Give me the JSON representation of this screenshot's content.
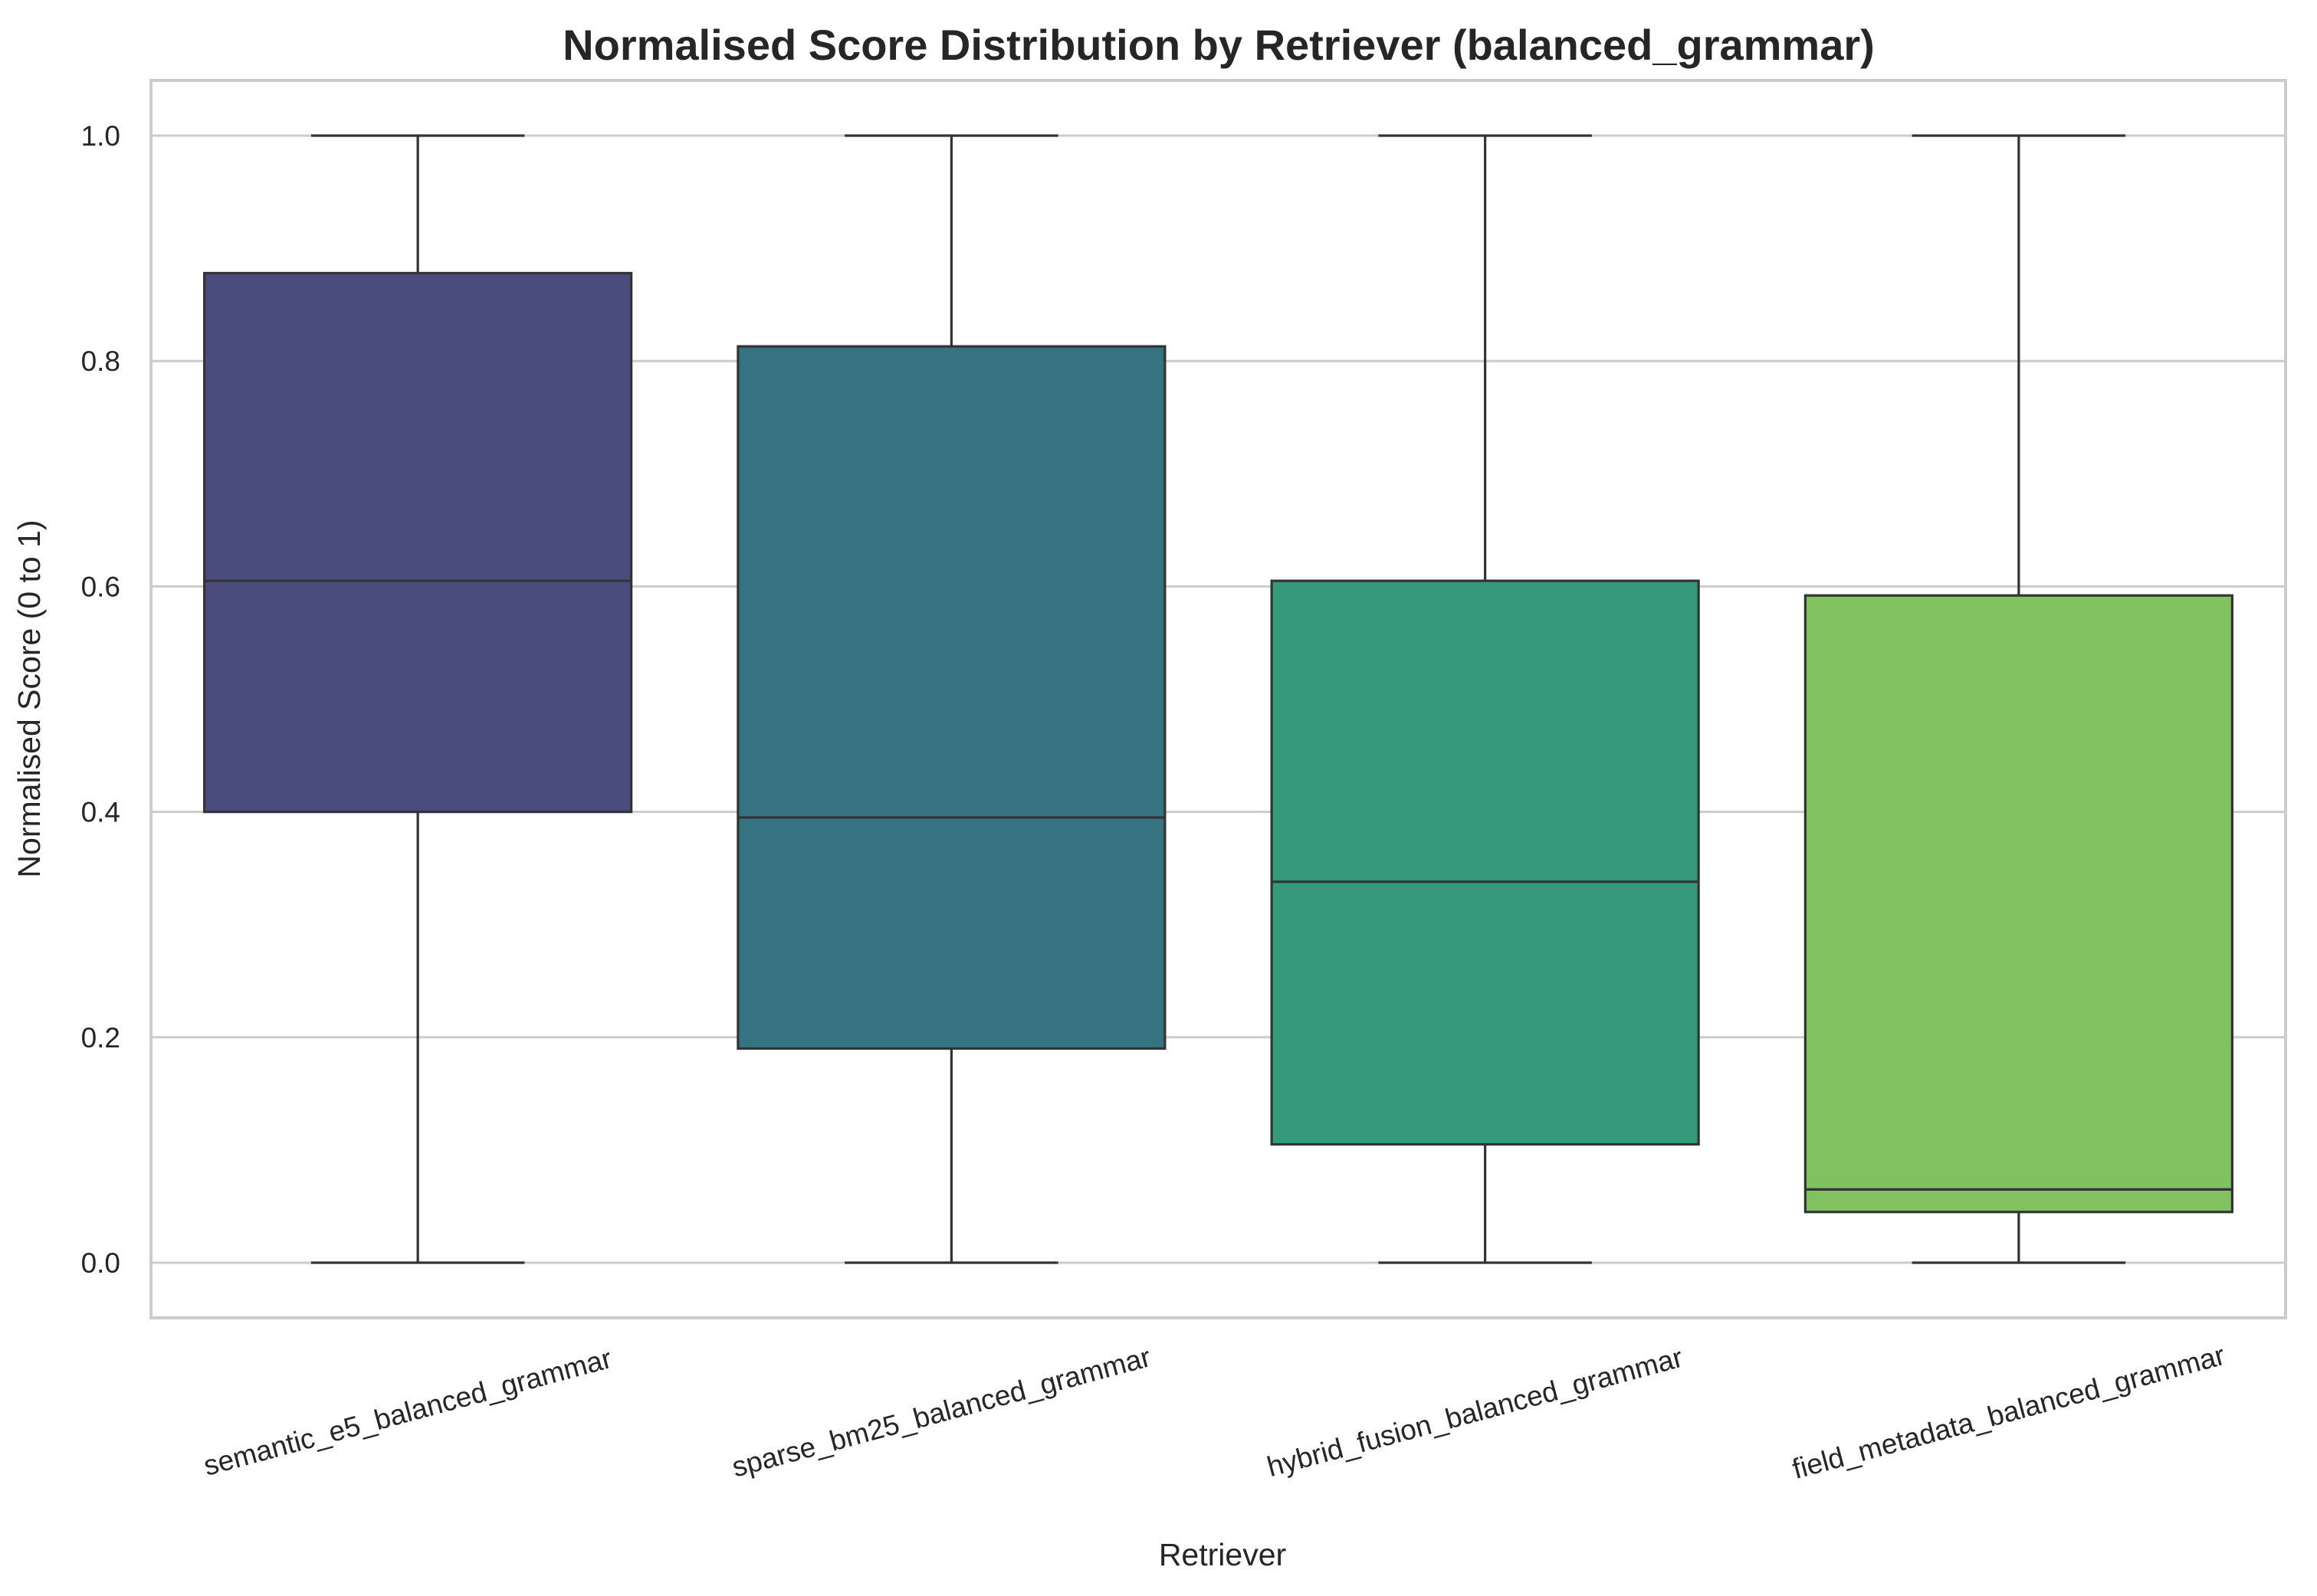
{
  "chart_data": {
    "type": "box",
    "title": "Normalised Score Distribution by Retriever (balanced_grammar)",
    "xlabel": "Retriever",
    "ylabel": "Normalised Score (0 to 1)",
    "ylim": [
      -0.048,
      1.05
    ],
    "yticks": [
      0.0,
      0.2,
      0.4,
      0.6,
      0.8,
      1.0
    ],
    "ytick_labels": [
      "0.0",
      "0.2",
      "0.4",
      "0.6",
      "0.8",
      "1.0"
    ],
    "grid": true,
    "categories": [
      "semantic_e5_balanced_grammar",
      "sparse_bm25_balanced_grammar",
      "hybrid_fusion_balanced_grammar",
      "field_metadata_balanced_grammar"
    ],
    "boxes": [
      {
        "whisker_low": 0.0,
        "q1": 0.4,
        "median": 0.605,
        "q3": 0.878,
        "whisker_high": 1.0,
        "color": "#482677"
      },
      {
        "whisker_low": 0.0,
        "q1": 0.19,
        "median": 0.395,
        "q3": 0.813,
        "whisker_high": 1.0,
        "color": "#2A788E"
      },
      {
        "whisker_low": 0.0,
        "q1": 0.105,
        "median": 0.338,
        "q3": 0.605,
        "whisker_high": 1.0,
        "color": "#22A884"
      },
      {
        "whisker_low": 0.0,
        "q1": 0.045,
        "median": 0.065,
        "q3": 0.592,
        "whisker_high": 1.0,
        "color": "#7AD151"
      }
    ],
    "box_colors_rendered": [
      "#4A4C7E",
      "#367381",
      "#359A7B",
      "#80C260"
    ]
  }
}
